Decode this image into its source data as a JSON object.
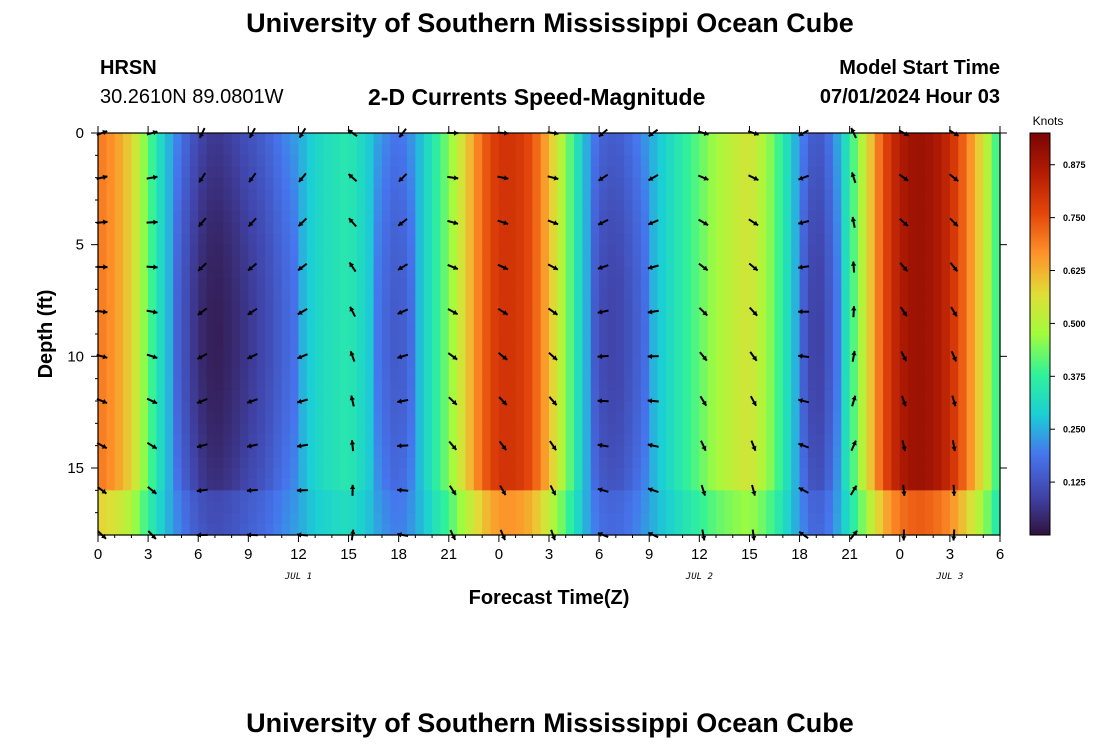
{
  "header": {
    "title": "University of Southern Mississippi Ocean Cube",
    "station": "HRSN",
    "coordinates": "30.2610N  89.0801W",
    "subtitle": "2-D Currents Speed-Magnitude",
    "model_start_label": "Model Start Time",
    "model_start_value": "07/01/2024 Hour 03"
  },
  "footer": {
    "title": "University of Southern Mississippi Ocean Cube"
  },
  "chart_data": {
    "type": "heatmap",
    "title": "2-D Currents Speed-Magnitude",
    "xlabel": "Forecast Time(Z)",
    "ylabel": "Depth (ft)",
    "x_ticks": [
      "0",
      "3",
      "6",
      "9",
      "12",
      "15",
      "18",
      "21",
      "0",
      "3",
      "6",
      "9",
      "12",
      "15",
      "18",
      "21",
      "0",
      "3",
      "6"
    ],
    "x_range_hours": [
      0,
      54
    ],
    "date_labels": [
      {
        "label": "JUL 1",
        "hour": 12
      },
      {
        "label": "JUL 2",
        "hour": 36
      },
      {
        "label": "JUL 3",
        "hour": 51
      }
    ],
    "y_ticks": [
      "0",
      "5",
      "10",
      "15"
    ],
    "y_range_ft": [
      0,
      18
    ],
    "colorbar": {
      "label": "Knots",
      "range": [
        0,
        0.95
      ],
      "ticks": [
        "0.875",
        "0.750",
        "0.625",
        "0.500",
        "0.375",
        "0.250",
        "0.125"
      ],
      "tick_values": [
        0.875,
        0.75,
        0.625,
        0.5,
        0.375,
        0.25,
        0.125
      ]
    },
    "vector_times_hours": [
      0,
      3,
      6,
      9,
      12,
      15,
      18,
      21,
      24,
      27,
      30,
      33,
      36,
      39,
      42,
      45,
      48,
      51
    ],
    "vector_depths_ft": [
      0,
      2,
      4,
      6,
      8,
      10,
      12,
      14,
      16,
      18
    ],
    "speed_profile_hours": [
      0,
      1,
      2,
      3,
      4,
      5,
      6,
      7,
      8,
      9,
      10,
      11,
      12,
      13,
      14,
      15,
      16,
      17,
      18,
      19,
      20,
      21,
      22,
      23,
      24,
      25,
      26,
      27,
      28,
      29,
      30,
      31,
      32,
      33,
      34,
      35,
      36,
      37,
      38,
      39,
      40,
      41,
      42,
      43,
      44,
      45,
      46,
      47,
      48,
      49,
      50,
      51,
      52,
      53,
      54
    ],
    "speed_profile_knots": [
      0.7,
      0.66,
      0.58,
      0.42,
      0.28,
      0.18,
      0.1,
      0.07,
      0.09,
      0.12,
      0.15,
      0.2,
      0.24,
      0.3,
      0.33,
      0.35,
      0.3,
      0.22,
      0.18,
      0.24,
      0.34,
      0.45,
      0.58,
      0.72,
      0.8,
      0.8,
      0.75,
      0.62,
      0.46,
      0.28,
      0.16,
      0.14,
      0.18,
      0.24,
      0.3,
      0.36,
      0.42,
      0.48,
      0.52,
      0.55,
      0.48,
      0.36,
      0.22,
      0.12,
      0.2,
      0.36,
      0.55,
      0.75,
      0.86,
      0.9,
      0.88,
      0.82,
      0.7,
      0.55,
      0.35
    ]
  }
}
